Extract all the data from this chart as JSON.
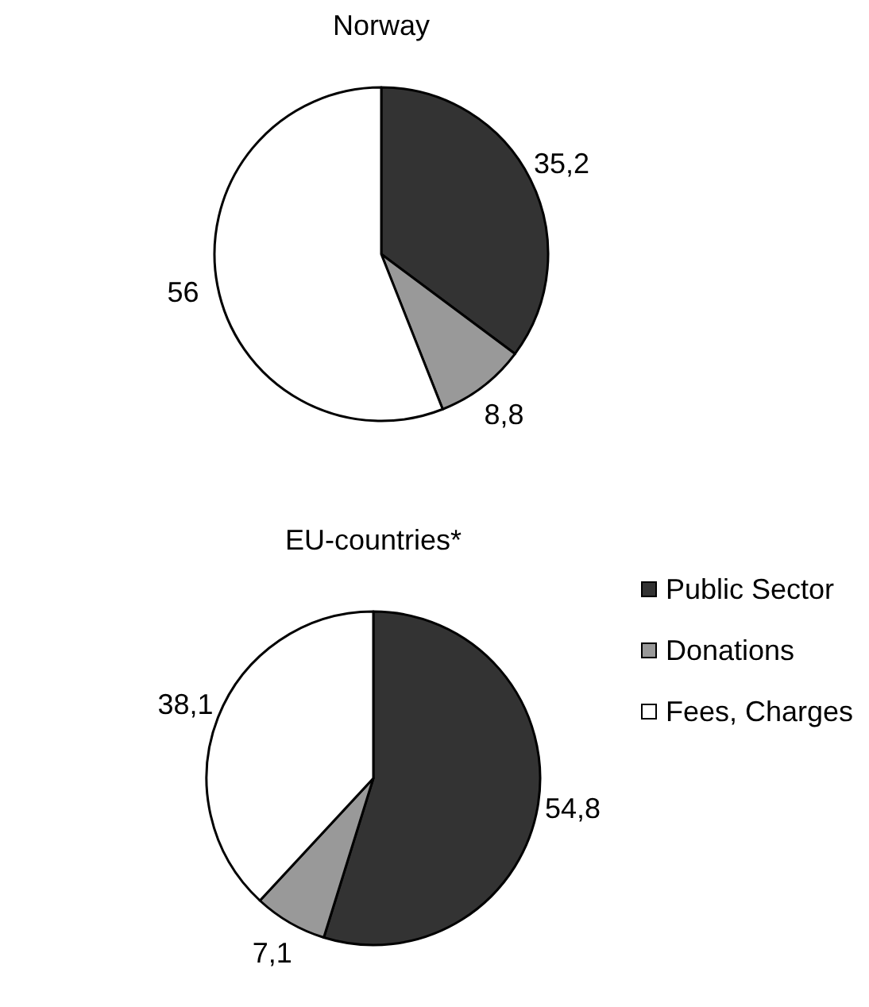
{
  "chart_data": {
    "type": "pie",
    "categories": [
      "Public Sector",
      "Donations",
      "Fees, Charges"
    ],
    "colors": [
      "#333333",
      "#999999",
      "#ffffff"
    ],
    "legend": "right",
    "series": [
      {
        "name": "Norway",
        "values": [
          35.2,
          8.8,
          56
        ],
        "value_labels": [
          "35,2",
          "8,8",
          "56"
        ]
      },
      {
        "name": "EU-countries*",
        "values": [
          54.8,
          7.1,
          38.1
        ],
        "value_labels": [
          "54,8",
          "7,1",
          "38,1"
        ]
      }
    ]
  }
}
